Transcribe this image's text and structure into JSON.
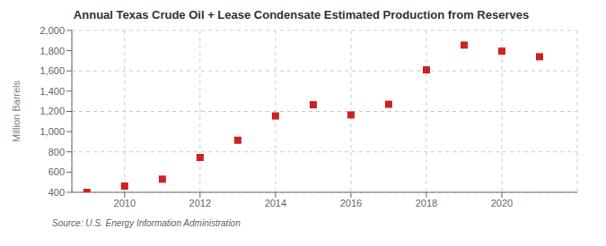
{
  "chart_data": {
    "type": "scatter",
    "title": "Annual Texas Crude Oil + Lease Condensate Estimated Production from Reserves",
    "ylabel": "Million Barrels",
    "annotations": [
      "Source: U.S. Energy Information Administration"
    ],
    "x": [
      2009,
      2010,
      2011,
      2012,
      2013,
      2014,
      2015,
      2016,
      2017,
      2018,
      2019,
      2020,
      2021
    ],
    "values": [
      400,
      462,
      530,
      745,
      915,
      1155,
      1265,
      1165,
      1270,
      1610,
      1855,
      1795,
      1740
    ],
    "color": "#cc2222",
    "marker": "square",
    "xlim": [
      2008.6,
      2022.0
    ],
    "xticks": [
      2010,
      2012,
      2014,
      2016,
      2018,
      2020
    ],
    "ylim": [
      400,
      2000
    ],
    "yticks": [
      400,
      600,
      800,
      {
        "value": 1000,
        "label": "1,000"
      },
      {
        "value": 1200,
        "label": "1,200"
      },
      {
        "value": 1400,
        "label": "1,400"
      },
      {
        "value": 1600,
        "label": "1,600"
      },
      {
        "value": 1800,
        "label": "1,800"
      },
      {
        "value": 2000,
        "label": "2,000"
      }
    ],
    "grid": true
  }
}
